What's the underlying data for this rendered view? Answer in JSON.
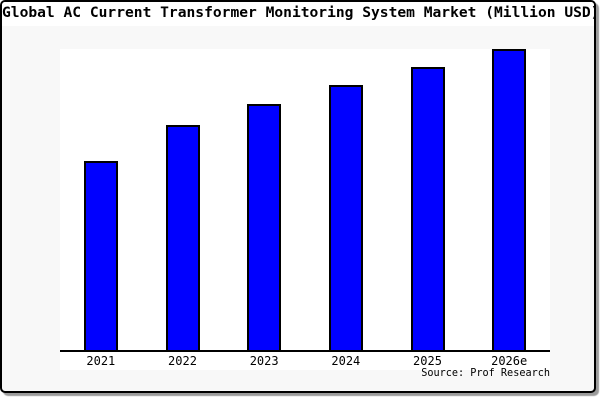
{
  "chart": {
    "title": "Global AC Current Transformer Monitoring System Market (Million USD)",
    "source": "Source: Prof Research"
  },
  "chart_data": {
    "type": "bar",
    "title": "Global AC Current Transformer Monitoring System Market (Million USD)",
    "categories": [
      "2021",
      "2022",
      "2023",
      "2024",
      "2025",
      "2026e"
    ],
    "values": [
      63,
      75,
      82,
      88,
      94,
      100
    ],
    "values_note": "y-axis has no tick labels; values are relative bar heights with 2026e = 100",
    "xlabel": "",
    "ylabel": "",
    "ylim": [
      0,
      100
    ],
    "grid": false,
    "legend_position": "none",
    "annotations": [
      "Source: Prof Research"
    ],
    "bar_color": "#0000ff",
    "bar_border_color": "#000000",
    "plot_background": "#ffffff",
    "figure_background": "#f8f8f8"
  }
}
